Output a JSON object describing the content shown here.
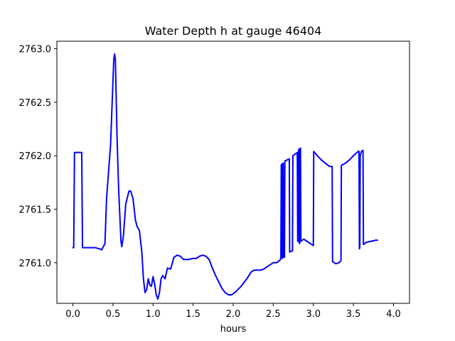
{
  "chart_data": {
    "type": "line",
    "title": "Water Depth h at gauge 46404",
    "xlabel": "hours",
    "ylabel": "",
    "xlim": [
      -0.2,
      4.2
    ],
    "ylim": [
      2760.62,
      2763.07
    ],
    "xticks": [
      {
        "value": 0.0,
        "label": "0.0"
      },
      {
        "value": 0.5,
        "label": "0.5"
      },
      {
        "value": 1.0,
        "label": "1.0"
      },
      {
        "value": 1.5,
        "label": "1.5"
      },
      {
        "value": 2.0,
        "label": "2.0"
      },
      {
        "value": 2.5,
        "label": "2.5"
      },
      {
        "value": 3.0,
        "label": "3.0"
      },
      {
        "value": 3.5,
        "label": "3.5"
      },
      {
        "value": 4.0,
        "label": "4.0"
      }
    ],
    "yticks": [
      {
        "value": 2761.0,
        "label": "2761.0"
      },
      {
        "value": 2761.5,
        "label": "2761.5"
      },
      {
        "value": 2762.0,
        "label": "2762.0"
      },
      {
        "value": 2762.5,
        "label": "2762.5"
      },
      {
        "value": 2763.0,
        "label": "2763.0"
      }
    ],
    "grid": false,
    "series": [
      {
        "color": "#0000ff",
        "points": [
          [
            0.0,
            2761.14
          ],
          [
            0.01,
            2761.14
          ],
          [
            0.02,
            2762.03
          ],
          [
            0.11,
            2762.03
          ],
          [
            0.12,
            2761.14
          ],
          [
            0.2,
            2761.14
          ],
          [
            0.28,
            2761.14
          ],
          [
            0.33,
            2761.13
          ],
          [
            0.36,
            2761.12
          ],
          [
            0.4,
            2761.18
          ],
          [
            0.42,
            2761.6
          ],
          [
            0.45,
            2761.9
          ],
          [
            0.47,
            2762.1
          ],
          [
            0.49,
            2762.5
          ],
          [
            0.51,
            2762.9
          ],
          [
            0.52,
            2762.95
          ],
          [
            0.53,
            2762.9
          ],
          [
            0.55,
            2762.2
          ],
          [
            0.57,
            2761.7
          ],
          [
            0.6,
            2761.2
          ],
          [
            0.61,
            2761.15
          ],
          [
            0.63,
            2761.25
          ],
          [
            0.66,
            2761.55
          ],
          [
            0.7,
            2761.67
          ],
          [
            0.72,
            2761.67
          ],
          [
            0.75,
            2761.6
          ],
          [
            0.78,
            2761.4
          ],
          [
            0.8,
            2761.34
          ],
          [
            0.83,
            2761.3
          ],
          [
            0.86,
            2761.1
          ],
          [
            0.88,
            2760.85
          ],
          [
            0.9,
            2760.72
          ],
          [
            0.92,
            2760.75
          ],
          [
            0.94,
            2760.85
          ],
          [
            0.96,
            2760.79
          ],
          [
            0.98,
            2760.78
          ],
          [
            1.0,
            2760.87
          ],
          [
            1.02,
            2760.8
          ],
          [
            1.04,
            2760.7
          ],
          [
            1.06,
            2760.66
          ],
          [
            1.08,
            2760.72
          ],
          [
            1.1,
            2760.85
          ],
          [
            1.12,
            2760.88
          ],
          [
            1.15,
            2760.85
          ],
          [
            1.18,
            2760.95
          ],
          [
            1.22,
            2760.94
          ],
          [
            1.26,
            2761.05
          ],
          [
            1.3,
            2761.07
          ],
          [
            1.34,
            2761.06
          ],
          [
            1.38,
            2761.03
          ],
          [
            1.44,
            2761.03
          ],
          [
            1.5,
            2761.04
          ],
          [
            1.54,
            2761.04
          ],
          [
            1.58,
            2761.06
          ],
          [
            1.62,
            2761.07
          ],
          [
            1.66,
            2761.06
          ],
          [
            1.7,
            2761.03
          ],
          [
            1.74,
            2760.95
          ],
          [
            1.78,
            2760.88
          ],
          [
            1.82,
            2760.82
          ],
          [
            1.86,
            2760.76
          ],
          [
            1.9,
            2760.72
          ],
          [
            1.94,
            2760.7
          ],
          [
            1.98,
            2760.7
          ],
          [
            2.02,
            2760.72
          ],
          [
            2.06,
            2760.75
          ],
          [
            2.1,
            2760.78
          ],
          [
            2.14,
            2760.82
          ],
          [
            2.18,
            2760.86
          ],
          [
            2.22,
            2760.91
          ],
          [
            2.26,
            2760.93
          ],
          [
            2.3,
            2760.93
          ],
          [
            2.34,
            2760.93
          ],
          [
            2.38,
            2760.94
          ],
          [
            2.42,
            2760.96
          ],
          [
            2.46,
            2760.98
          ],
          [
            2.5,
            2761.0
          ],
          [
            2.54,
            2761.0
          ],
          [
            2.58,
            2761.02
          ],
          [
            2.595,
            2761.04
          ],
          [
            2.6,
            2761.91
          ],
          [
            2.605,
            2761.92
          ],
          [
            2.61,
            2761.04
          ],
          [
            2.615,
            2761.05
          ],
          [
            2.62,
            2761.93
          ],
          [
            2.625,
            2761.93
          ],
          [
            2.63,
            2761.05
          ],
          [
            2.64,
            2761.05
          ],
          [
            2.645,
            2761.95
          ],
          [
            2.7,
            2761.97
          ],
          [
            2.705,
            2761.1
          ],
          [
            2.74,
            2761.11
          ],
          [
            2.745,
            2762.0
          ],
          [
            2.8,
            2762.03
          ],
          [
            2.805,
            2761.2
          ],
          [
            2.81,
            2761.2
          ],
          [
            2.815,
            2762.05
          ],
          [
            2.82,
            2762.06
          ],
          [
            2.825,
            2761.18
          ],
          [
            2.83,
            2761.18
          ],
          [
            2.835,
            2762.07
          ],
          [
            2.84,
            2762.07
          ],
          [
            2.845,
            2761.2
          ],
          [
            2.88,
            2761.22
          ],
          [
            2.92,
            2761.2
          ],
          [
            2.96,
            2761.18
          ],
          [
            3.0,
            2761.16
          ],
          [
            3.005,
            2762.04
          ],
          [
            3.05,
            2762.0
          ],
          [
            3.1,
            2761.96
          ],
          [
            3.15,
            2761.93
          ],
          [
            3.2,
            2761.9
          ],
          [
            3.235,
            2761.9
          ],
          [
            3.24,
            2761.01
          ],
          [
            3.28,
            2760.99
          ],
          [
            3.32,
            2761.0
          ],
          [
            3.345,
            2761.02
          ],
          [
            3.35,
            2761.91
          ],
          [
            3.4,
            2761.93
          ],
          [
            3.45,
            2761.96
          ],
          [
            3.5,
            2762.0
          ],
          [
            3.56,
            2762.04
          ],
          [
            3.57,
            2762.04
          ],
          [
            3.575,
            2761.13
          ],
          [
            3.58,
            2761.14
          ],
          [
            3.585,
            2762.0
          ],
          [
            3.6,
            2762.04
          ],
          [
            3.62,
            2762.05
          ],
          [
            3.625,
            2761.17
          ],
          [
            3.66,
            2761.19
          ],
          [
            3.72,
            2761.2
          ],
          [
            3.78,
            2761.21
          ],
          [
            3.8,
            2761.21
          ]
        ]
      }
    ]
  }
}
